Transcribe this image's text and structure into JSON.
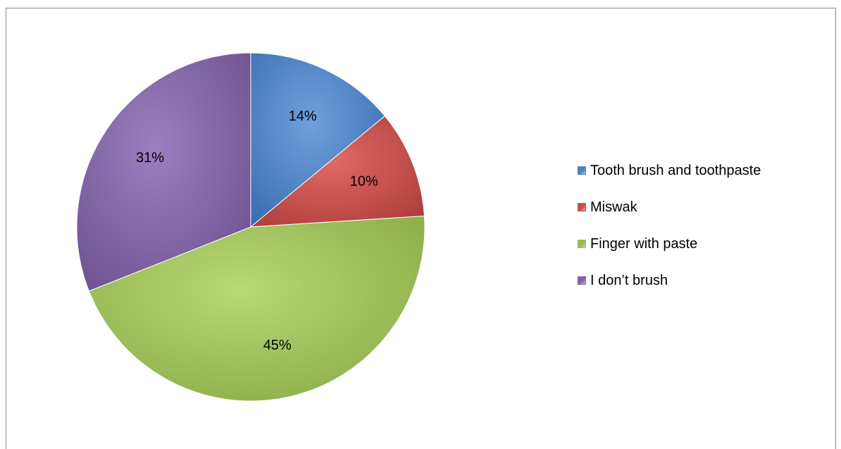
{
  "chart_data": {
    "type": "pie",
    "title": "",
    "categories": [
      "Tooth brush and toothpaste",
      "Miswak",
      "Finger with paste",
      "I don’t brush"
    ],
    "values": [
      14,
      10,
      45,
      31
    ],
    "value_labels": [
      "14%",
      "10%",
      "45%",
      "31%"
    ],
    "colors": [
      "#4F81BD",
      "#C0504D",
      "#9BBB59",
      "#8064A2"
    ],
    "start": "12 o'clock",
    "direction": "clockwise",
    "legend_position": "right"
  }
}
